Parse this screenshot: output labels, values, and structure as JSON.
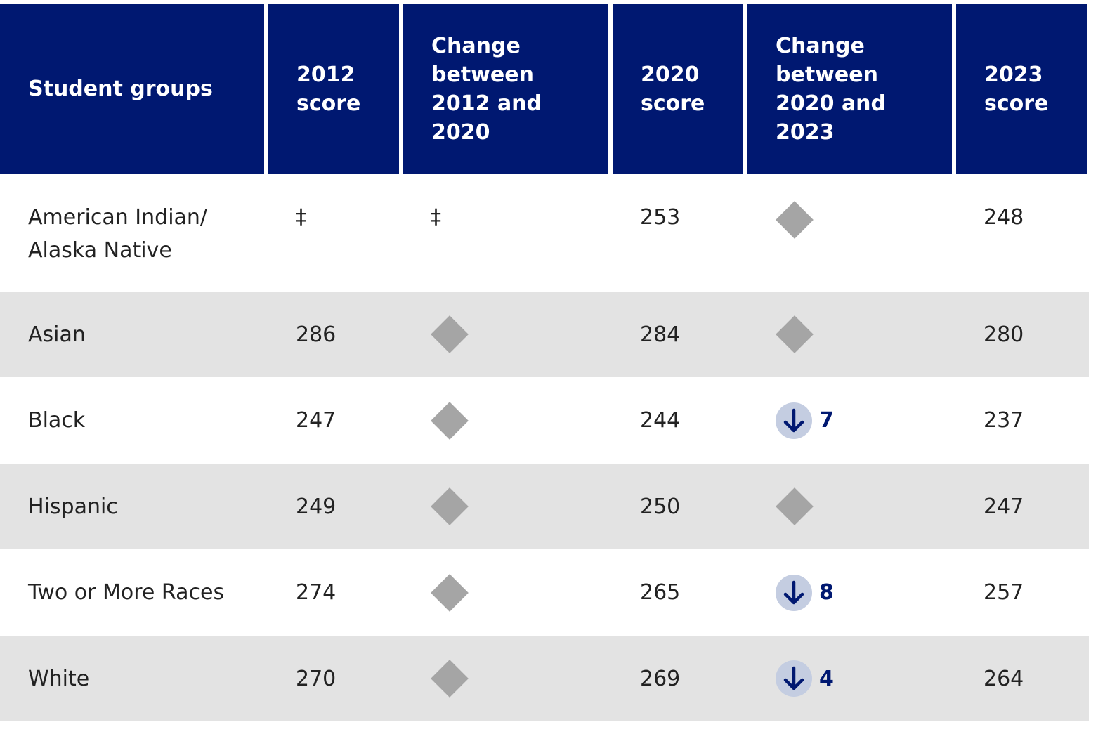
{
  "table": {
    "headers": [
      {
        "lines": [
          "Student groups"
        ]
      },
      {
        "lines": [
          "2012",
          "score"
        ]
      },
      {
        "lines": [
          "Change",
          "between",
          "2012 and",
          "2020"
        ]
      },
      {
        "lines": [
          "2020",
          "score"
        ]
      },
      {
        "lines": [
          "Change",
          "between",
          "2020 and",
          "2023"
        ]
      },
      {
        "lines": [
          "2023",
          "score"
        ]
      }
    ],
    "rows": [
      {
        "group_line1": "American Indian/",
        "group_line2": "Alaska Native",
        "score_2012": "‡",
        "change_2012_2020": "‡",
        "score_2020": "253",
        "change_2020_2023": "",
        "score_2023": "248"
      },
      {
        "group_line1": "Asian",
        "group_line2": "",
        "score_2012": "286",
        "change_2012_2020": "",
        "score_2020": "284",
        "change_2020_2023": "",
        "score_2023": "280"
      },
      {
        "group_line1": "Black",
        "group_line2": "",
        "score_2012": "247",
        "change_2012_2020": "",
        "score_2020": "244",
        "change_2020_2023": "7",
        "score_2023": "237"
      },
      {
        "group_line1": "Hispanic",
        "group_line2": "",
        "score_2012": "249",
        "change_2012_2020": "",
        "score_2020": "250",
        "change_2020_2023": "",
        "score_2023": "247"
      },
      {
        "group_line1": "Two or More Races",
        "group_line2": "",
        "score_2012": "274",
        "change_2012_2020": "",
        "score_2020": "265",
        "change_2020_2023": "8",
        "score_2023": "257"
      },
      {
        "group_line1": "White",
        "group_line2": "",
        "score_2012": "270",
        "change_2012_2020": "",
        "score_2020": "269",
        "change_2020_2023": "4",
        "score_2023": "264"
      }
    ]
  },
  "icons": {
    "no_change": "diamond-icon",
    "decrease": "arrow-down-icon"
  },
  "colors": {
    "header_bg": "#001871",
    "header_text": "#ffffff",
    "alt_row_bg": "#e3e3e3",
    "diamond": "#a5a5a5",
    "arrow_circle": "#c4cde1",
    "arrow": "#001871"
  }
}
